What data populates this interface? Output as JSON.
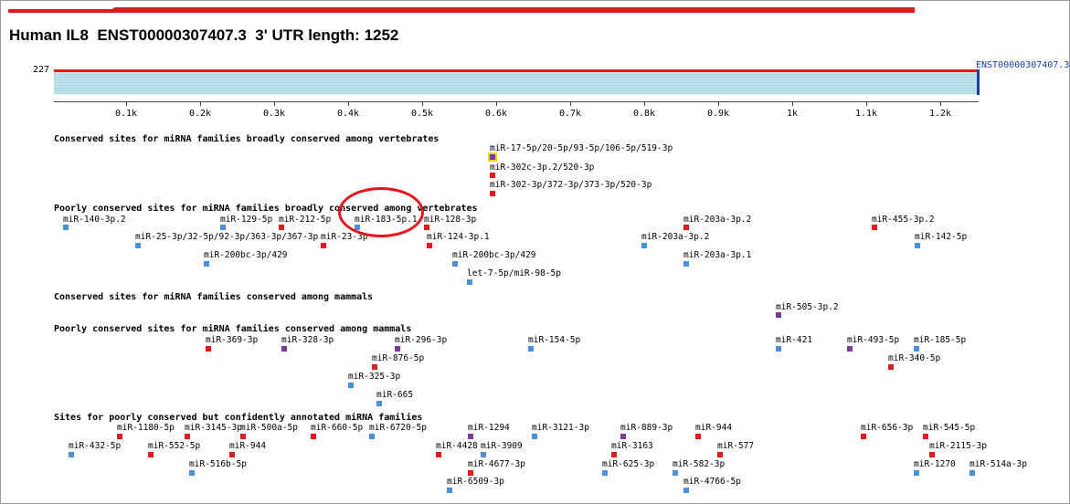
{
  "title": "Human IL8  ENST00000307407.3  3' UTR length: 1252",
  "track_number": "227",
  "transcript_label": "ENST00000307407.3",
  "colors": {
    "conserved_high": "#e31a1c",
    "conserved_low": "#4a90d9",
    "mammal": "#7a3a9a",
    "highlight": "#f2d21b",
    "annotation": "#e8121b",
    "utr_fill": "#bfe3ec"
  },
  "axis_ticks": [
    "0.1k",
    "0.2k",
    "0.3k",
    "0.4k",
    "0.5k",
    "0.6k",
    "0.7k",
    "0.8k",
    "0.9k",
    "1k",
    "1.1k",
    "1.2k"
  ],
  "sections": [
    "Conserved sites for miRNA families broadly conserved among vertebrates",
    "Poorly conserved sites for miRNA families broadly conserved among vertebrates",
    "Conserved sites for miRNA families conserved among mammals",
    "Poorly conserved sites for miRNA families conserved among mammals",
    "Sites for poorly conserved but confidently annotated miRNA families"
  ],
  "sites": [
    {
      "label": "miR-17-5p/20-5p/93-5p/106-5p/519-3p",
      "color": "purple",
      "highlighted": true
    },
    {
      "label": "miR-302c-3p.2/520-3p",
      "color": "red"
    },
    {
      "label": "miR-302-3p/372-3p/373-3p/520-3p",
      "color": "red"
    },
    {
      "label": "miR-140-3p.2",
      "color": "blue"
    },
    {
      "label": "miR-129-5p",
      "color": "blue"
    },
    {
      "label": "miR-212-5p",
      "color": "red"
    },
    {
      "label": "miR-183-5p.1",
      "color": "blue"
    },
    {
      "label": "miR-128-3p",
      "color": "red"
    },
    {
      "label": "miR-203a-3p.2",
      "color": "red"
    },
    {
      "label": "miR-455-3p.2",
      "color": "red"
    },
    {
      "label": "miR-25-3p/32-5p/92-3p/363-3p/367-3p",
      "color": "blue"
    },
    {
      "label": "miR-23-3p",
      "color": "red"
    },
    {
      "label": "miR-124-3p.1",
      "color": "red"
    },
    {
      "label": "miR-203a-3p.2",
      "color": "blue"
    },
    {
      "label": "miR-142-5p",
      "color": "blue"
    },
    {
      "label": "miR-200bc-3p/429",
      "color": "blue"
    },
    {
      "label": "miR-200bc-3p/429",
      "color": "blue"
    },
    {
      "label": "miR-203a-3p.1",
      "color": "blue"
    },
    {
      "label": "let-7-5p/miR-98-5p",
      "color": "blue"
    },
    {
      "label": "miR-505-3p.2",
      "color": "purple"
    },
    {
      "label": "miR-369-3p",
      "color": "red"
    },
    {
      "label": "miR-328-3p",
      "color": "purple"
    },
    {
      "label": "miR-296-3p",
      "color": "purple"
    },
    {
      "label": "miR-154-5p",
      "color": "blue"
    },
    {
      "label": "miR-421",
      "color": "blue"
    },
    {
      "label": "miR-493-5p",
      "color": "purple"
    },
    {
      "label": "miR-185-5p",
      "color": "blue"
    },
    {
      "label": "miR-876-5p",
      "color": "red"
    },
    {
      "label": "miR-340-5p",
      "color": "red"
    },
    {
      "label": "miR-325-3p",
      "color": "blue"
    },
    {
      "label": "miR-665",
      "color": "blue"
    },
    {
      "label": "miR-1180-5p",
      "color": "red"
    },
    {
      "label": "miR-3145-3p",
      "color": "red"
    },
    {
      "label": "miR-500a-5p",
      "color": "red"
    },
    {
      "label": "miR-660-5p",
      "color": "red"
    },
    {
      "label": "miR-6720-5p",
      "color": "blue"
    },
    {
      "label": "miR-1294",
      "color": "purple"
    },
    {
      "label": "miR-3121-3p",
      "color": "blue"
    },
    {
      "label": "miR-889-3p",
      "color": "purple"
    },
    {
      "label": "miR-944",
      "color": "red"
    },
    {
      "label": "miR-656-3p",
      "color": "red"
    },
    {
      "label": "miR-545-5p",
      "color": "red"
    },
    {
      "label": "miR-432-5p",
      "color": "blue"
    },
    {
      "label": "miR-552-5p",
      "color": "red"
    },
    {
      "label": "miR-944",
      "color": "red"
    },
    {
      "label": "miR-4428",
      "color": "red"
    },
    {
      "label": "miR-3909",
      "color": "blue"
    },
    {
      "label": "miR-3163",
      "color": "red"
    },
    {
      "label": "miR-577",
      "color": "red"
    },
    {
      "label": "miR-2115-3p",
      "color": "red"
    },
    {
      "label": "miR-516b-5p",
      "color": "blue"
    },
    {
      "label": "miR-4677-3p",
      "color": "red"
    },
    {
      "label": "miR-625-3p",
      "color": "blue"
    },
    {
      "label": "miR-582-3p",
      "color": "blue"
    },
    {
      "label": "miR-1270",
      "color": "blue"
    },
    {
      "label": "miR-514a-3p",
      "color": "blue"
    },
    {
      "label": "miR-6509-3p",
      "color": "blue"
    },
    {
      "label": "miR-4766-5p",
      "color": "blue"
    }
  ]
}
